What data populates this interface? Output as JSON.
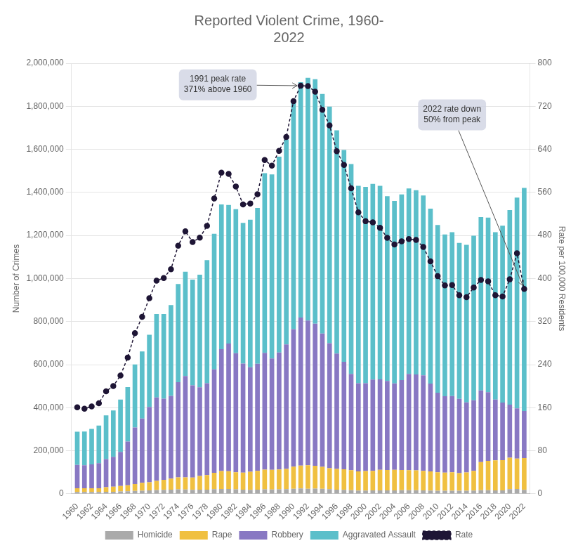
{
  "chart_data": {
    "type": "bar",
    "title": "Reported Violent Crime, 1960-\n2022",
    "x": [
      1960,
      1961,
      1962,
      1963,
      1964,
      1965,
      1966,
      1967,
      1968,
      1969,
      1970,
      1971,
      1972,
      1973,
      1974,
      1975,
      1976,
      1977,
      1978,
      1979,
      1980,
      1981,
      1982,
      1983,
      1984,
      1985,
      1986,
      1987,
      1988,
      1989,
      1990,
      1991,
      1992,
      1993,
      1994,
      1995,
      1996,
      1997,
      1998,
      1999,
      2000,
      2001,
      2002,
      2003,
      2004,
      2005,
      2006,
      2007,
      2008,
      2009,
      2010,
      2011,
      2012,
      2013,
      2014,
      2015,
      2016,
      2017,
      2018,
      2019,
      2020,
      2021,
      2022
    ],
    "series": [
      {
        "name": "Homicide",
        "color": "#aaaaaa",
        "values": [
          9110,
          8740,
          8530,
          8640,
          9360,
          9960,
          11040,
          12240,
          13800,
          14760,
          16000,
          17780,
          18520,
          19640,
          20710,
          20510,
          18780,
          19120,
          19560,
          21460,
          23040,
          22520,
          21010,
          19310,
          18690,
          18980,
          20610,
          20100,
          20680,
          21500,
          23440,
          24700,
          23760,
          24530,
          23330,
          21610,
          19650,
          18210,
          16970,
          15520,
          15520,
          16040,
          16230,
          16530,
          16150,
          16740,
          17030,
          17130,
          16470,
          15240,
          14722,
          14661,
          14827,
          14319,
          14249,
          15696,
          17250,
          17284,
          16214,
          16425,
          21570,
          22900,
          18850
        ]
      },
      {
        "name": "Rape",
        "color": "#f0c040",
        "values": [
          17190,
          17220,
          17550,
          17650,
          21420,
          23410,
          25820,
          27620,
          31670,
          36470,
          37990,
          42260,
          46850,
          51400,
          55400,
          56090,
          57080,
          63500,
          67610,
          76390,
          82990,
          82500,
          78770,
          78920,
          84230,
          87670,
          91460,
          91110,
          92490,
          94500,
          102560,
          106590,
          109060,
          106010,
          102220,
          97460,
          96250,
          96150,
          93100,
          89110,
          90180,
          90860,
          95140,
          93880,
          95090,
          94350,
          92760,
          92160,
          90479,
          89000,
          85593,
          84175,
          85141,
          82109,
          84864,
          91261,
          130600,
          135670,
          139380,
          139815,
          146600,
          140541,
          147420
        ]
      },
      {
        "name": "Robbery",
        "color": "#8878c3",
        "values": [
          107840,
          106670,
          110860,
          116470,
          130390,
          138690,
          157990,
          202910,
          262840,
          298850,
          349860,
          387700,
          376290,
          384220,
          442400,
          470500,
          427810,
          412610,
          426930,
          480700,
          565840,
          592910,
          553130,
          506567,
          485008,
          497874,
          542775,
          517704,
          542968,
          578326,
          639271,
          687732,
          672478,
          659870,
          618820,
          580509,
          535594,
          498534,
          447186,
          409371,
          408016,
          423557,
          420637,
          414235,
          401470,
          417438,
          447403,
          445125,
          443563,
          408217,
          369089,
          354396,
          354522,
          345095,
          325802,
          327374,
          332198,
          319356,
          282061,
          267988,
          245894,
          233594,
          218905
        ]
      },
      {
        "name": "Aggravated Assault",
        "color": "#5bbfca",
        "values": [
          154320,
          156760,
          164570,
          174210,
          203050,
          215330,
          243400,
          253320,
          292590,
          311090,
          334970,
          387750,
          393090,
          421500,
          456210,
          484710,
          491460,
          522510,
          571460,
          629480,
          672650,
          643720,
          669480,
          653294,
          685349,
          723246,
          834322,
          855088,
          910092,
          951707,
          1054863,
          1092739,
          1126974,
          1135099,
          1113180,
          1099179,
          1037049,
          983795,
          974402,
          916383,
          911706,
          909023,
          898892,
          857921,
          847381,
          862220,
          860853,
          855856,
          834885,
          812514,
          778901,
          751131,
          760739,
          724149,
          731472,
          764593,
          805291,
          810825,
          777999,
          821182,
          903980,
          979056,
          1035897
        ]
      },
      {
        "name": "Rate",
        "type": "line",
        "axis": "y2",
        "color": "#1e1535",
        "marker": "circle",
        "line_style": "dashed",
        "values": [
          160.9,
          158.1,
          162.3,
          168.2,
          190.6,
          200.2,
          220.0,
          253.2,
          298.4,
          328.7,
          363.5,
          396.0,
          401.0,
          417.4,
          461.1,
          487.8,
          467.8,
          475.9,
          497.8,
          548.9,
          596.6,
          594.3,
          571.1,
          537.7,
          539.2,
          556.6,
          620.1,
          609.7,
          637.2,
          663.1,
          729.6,
          758.2,
          757.5,
          747.1,
          713.6,
          684.5,
          636.6,
          611.0,
          567.6,
          523.0,
          506.5,
          504.5,
          494.4,
          475.8,
          463.2,
          469.0,
          473.5,
          471.8,
          458.6,
          431.9,
          404.5,
          387.1,
          387.8,
          369.1,
          365.5,
          383.2,
          397.5,
          394.9,
          369.0,
          366.7,
          398.5,
          447.0,
          380.7
        ]
      }
    ],
    "stacked": true,
    "xlim": [
      1959.2,
      2022.8
    ],
    "xticks": [
      1960,
      1962,
      1964,
      1966,
      1968,
      1970,
      1972,
      1974,
      1976,
      1978,
      1980,
      1982,
      1984,
      1986,
      1988,
      1990,
      1992,
      1994,
      1996,
      1998,
      2000,
      2002,
      2004,
      2006,
      2008,
      2010,
      2012,
      2014,
      2016,
      2018,
      2020,
      2022
    ],
    "ylabel": "Number of Crimes",
    "ylim": [
      0,
      2000000
    ],
    "yticks": [
      0,
      {
        "value": 200000,
        "label": "200,000"
      },
      {
        "value": 400000,
        "label": "400,000"
      },
      {
        "value": 600000,
        "label": "600,000"
      },
      {
        "value": 800000,
        "label": "800,000"
      },
      {
        "value": 1000000,
        "label": "1,000,000"
      },
      {
        "value": 1200000,
        "label": "1,200,000"
      },
      {
        "value": 1400000,
        "label": "1,400,000"
      },
      {
        "value": 1600000,
        "label": "1,600,000"
      },
      {
        "value": 1800000,
        "label": "1,800,000"
      },
      {
        "value": 2000000,
        "label": "2,000,000"
      }
    ],
    "y2label": "Rate per 100,000 Residents",
    "y2lim": [
      0,
      800
    ],
    "y2ticks": [
      0,
      80,
      160,
      240,
      320,
      400,
      480,
      560,
      640,
      720,
      800
    ],
    "grid": "y",
    "legend": "bottom",
    "annotations": [
      {
        "text": "1991 peak rate\n371% above 1960",
        "x": 1991,
        "y": 758.2,
        "axis": "y2"
      },
      {
        "text": "2022 rate down\n50% from peak",
        "x": 2022,
        "y": 380.7,
        "axis": "y2"
      }
    ]
  }
}
